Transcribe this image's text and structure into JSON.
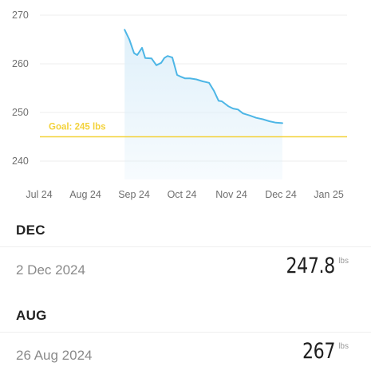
{
  "chart_data": {
    "type": "area",
    "y_ticks": [
      240,
      250,
      260,
      270
    ],
    "ylim": [
      237,
      272
    ],
    "x_ticks": [
      "Jul 24",
      "Aug 24",
      "Sep 24",
      "Oct 24",
      "Nov 24",
      "Dec 24",
      "Jan 25"
    ],
    "series": [
      {
        "x": [
          "2024-08-26",
          "2024-08-29",
          "2024-09-01",
          "2024-09-03",
          "2024-09-06",
          "2024-09-08",
          "2024-09-12",
          "2024-09-15",
          "2024-09-18",
          "2024-09-20",
          "2024-09-22",
          "2024-09-25",
          "2024-09-28",
          "2024-09-30",
          "2024-10-03",
          "2024-10-06",
          "2024-10-10",
          "2024-10-14",
          "2024-10-18",
          "2024-10-21",
          "2024-10-24",
          "2024-10-26",
          "2024-10-28",
          "2024-10-30",
          "2024-11-02",
          "2024-11-05",
          "2024-11-08",
          "2024-11-12",
          "2024-11-16",
          "2024-11-20",
          "2024-11-24",
          "2024-11-28",
          "2024-12-02"
        ],
        "values": [
          267,
          265,
          262.2,
          261.8,
          263.3,
          261.2,
          261.1,
          259.7,
          260.2,
          261.2,
          261.6,
          261.3,
          257.7,
          257.4,
          257.0,
          257.0,
          256.8,
          256.4,
          256.1,
          254.5,
          252.4,
          252.3,
          251.8,
          251.3,
          250.8,
          250.6,
          249.8,
          249.4,
          248.9,
          248.6,
          248.2,
          247.9,
          247.8
        ]
      }
    ],
    "goal": {
      "value": 245,
      "label": "Goal: 245 lbs"
    },
    "line_color": "#4db6e6",
    "fill_color": "#dff0fa",
    "goal_color": "#f3d23b",
    "grid": true
  },
  "sections": [
    {
      "header": "DEC",
      "entry": {
        "date": "2 Dec 2024",
        "value": "247.8",
        "unit": "lbs"
      }
    },
    {
      "header": "AUG",
      "entry": {
        "date": "26 Aug 2024",
        "value": "267",
        "unit": "lbs"
      }
    }
  ]
}
